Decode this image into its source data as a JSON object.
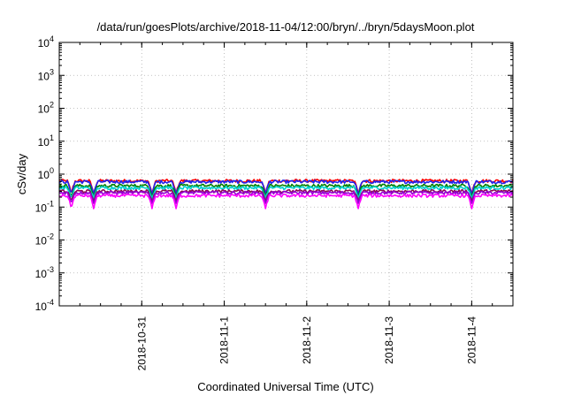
{
  "chart_data": {
    "type": "line",
    "title": "/data/run/goesPlots/archive/2018-11-04/12:00/bryn/../bryn/5daysMoon.plot",
    "xlabel": "Coordinated Universal Time (UTC)",
    "ylabel": "cSv/day",
    "y_scale": "log",
    "ylim": [
      0.0001,
      10000
    ],
    "y_ticks": [
      {
        "base": "10",
        "exp": "-4",
        "value": 0.0001
      },
      {
        "base": "10",
        "exp": "-3",
        "value": 0.001
      },
      {
        "base": "10",
        "exp": "-2",
        "value": 0.01
      },
      {
        "base": "10",
        "exp": "-1",
        "value": 0.1
      },
      {
        "base": "10",
        "exp": "0",
        "value": 1
      },
      {
        "base": "10",
        "exp": "1",
        "value": 10
      },
      {
        "base": "10",
        "exp": "2",
        "value": 100
      },
      {
        "base": "10",
        "exp": "3",
        "value": 1000
      },
      {
        "base": "10",
        "exp": "4",
        "value": 10000
      }
    ],
    "x_start": "2018-10-30 00:00",
    "x_end": "2018-11-04 12:00",
    "x_ticks": [
      {
        "label": "2018-10-31",
        "value": "2018-10-31 00:00"
      },
      {
        "label": "2018-11-1",
        "value": "2018-11-01 00:00"
      },
      {
        "label": "2018-11-2",
        "value": "2018-11-02 00:00"
      },
      {
        "label": "2018-11-3",
        "value": "2018-11-03 00:00"
      },
      {
        "label": "2018-11-4",
        "value": "2018-11-04 00:00"
      }
    ],
    "grid": true,
    "dip_times": [
      "2018-10-30 03:30",
      "2018-10-30 10:00",
      "2018-10-31 03:00",
      "2018-10-31 10:00",
      "2018-11-01 12:00",
      "2018-11-02 15:00",
      "2018-11-04 00:00"
    ],
    "series": [
      {
        "color": "#ff0000",
        "baseline": 0.62,
        "dip_min": 0.25
      },
      {
        "color": "#2222ee",
        "baseline": 0.58,
        "dip_min": 0.24
      },
      {
        "color": "#008000",
        "baseline": 0.44,
        "dip_min": 0.2
      },
      {
        "color": "#00d0d0",
        "baseline": 0.38,
        "dip_min": 0.18
      },
      {
        "color": "#8b0a50",
        "baseline": 0.3,
        "dip_min": 0.15
      },
      {
        "color": "#9400d3",
        "baseline": 0.27,
        "dip_min": 0.13
      },
      {
        "color": "#ff00ff",
        "baseline": 0.22,
        "dip_min": 0.09
      }
    ]
  }
}
